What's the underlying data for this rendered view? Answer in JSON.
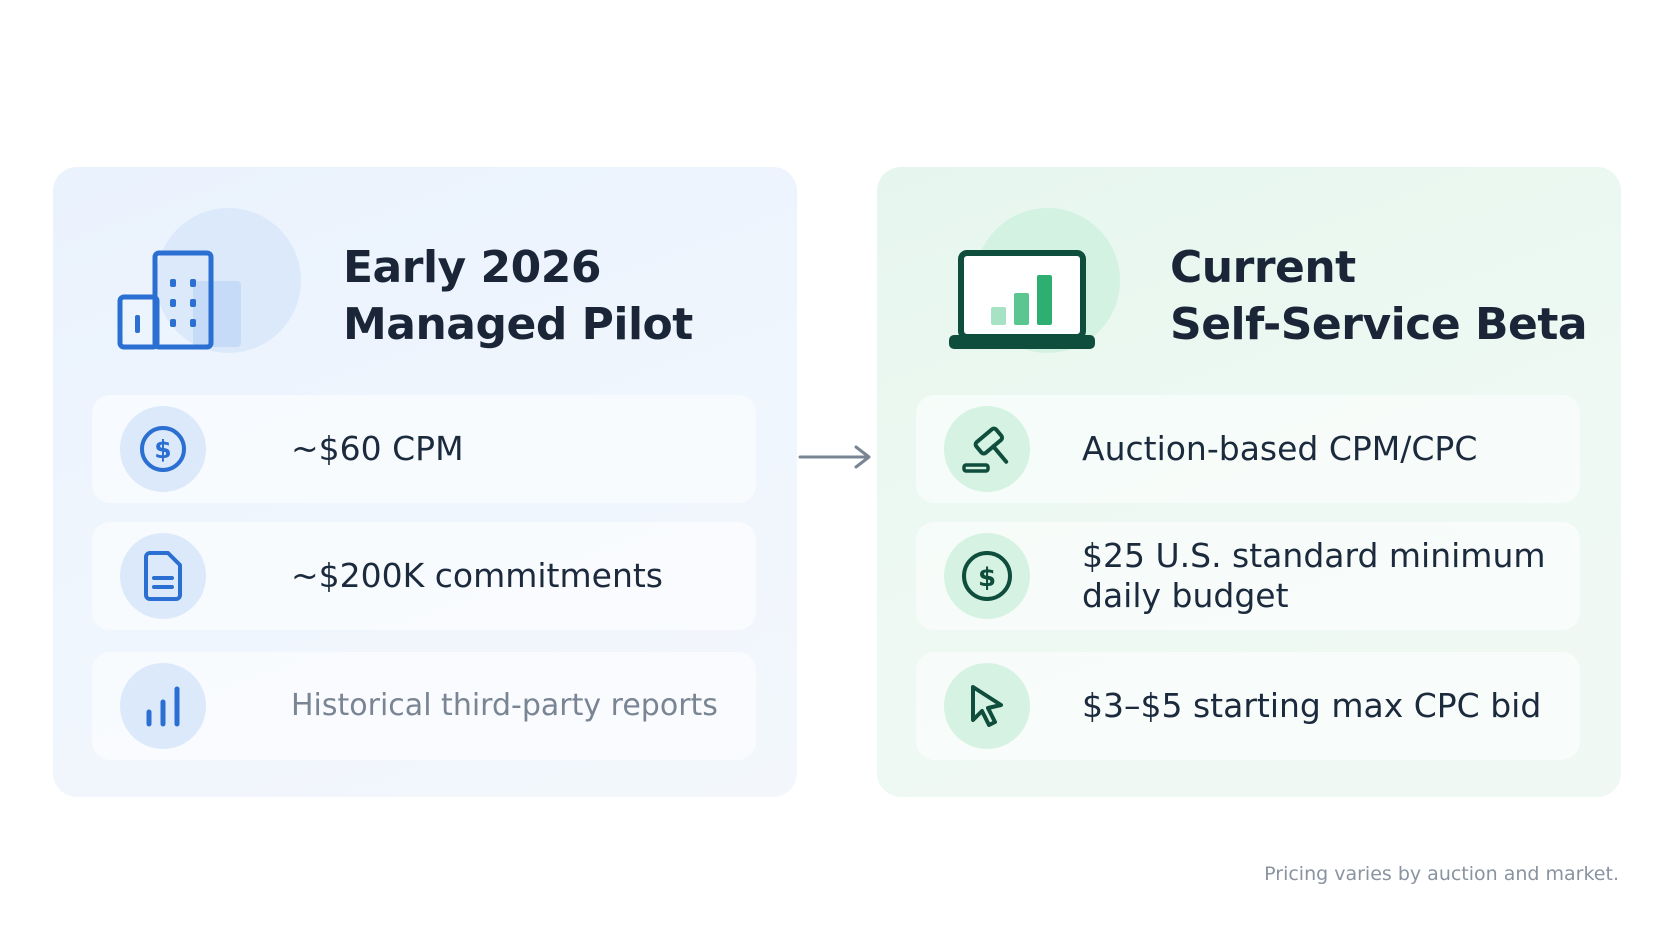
{
  "left_card": {
    "title_line1": "Early 2026",
    "title_line2": "Managed Pilot",
    "rows": [
      {
        "icon": "dollar-circle-icon",
        "text": "~$60 CPM"
      },
      {
        "icon": "document-icon",
        "text": "~$200K commitments"
      },
      {
        "icon": "bar-chart-icon",
        "text": "Historical third-party reports"
      }
    ]
  },
  "right_card": {
    "title_line1": "Current",
    "title_line2": "Self-Service Beta",
    "rows": [
      {
        "icon": "gavel-icon",
        "text": "Auction-based CPM/CPC"
      },
      {
        "icon": "dollar-circle-icon",
        "text": "$25 U.S. standard minimum daily budget"
      },
      {
        "icon": "cursor-icon",
        "text": "$3–$5 starting max CPC bid"
      }
    ]
  },
  "footnote": "Pricing varies by auction and market.",
  "colors": {
    "blue_accent": "#2a6fd1",
    "green_accent": "#0f4d3c",
    "title_text": "#1a2638"
  }
}
